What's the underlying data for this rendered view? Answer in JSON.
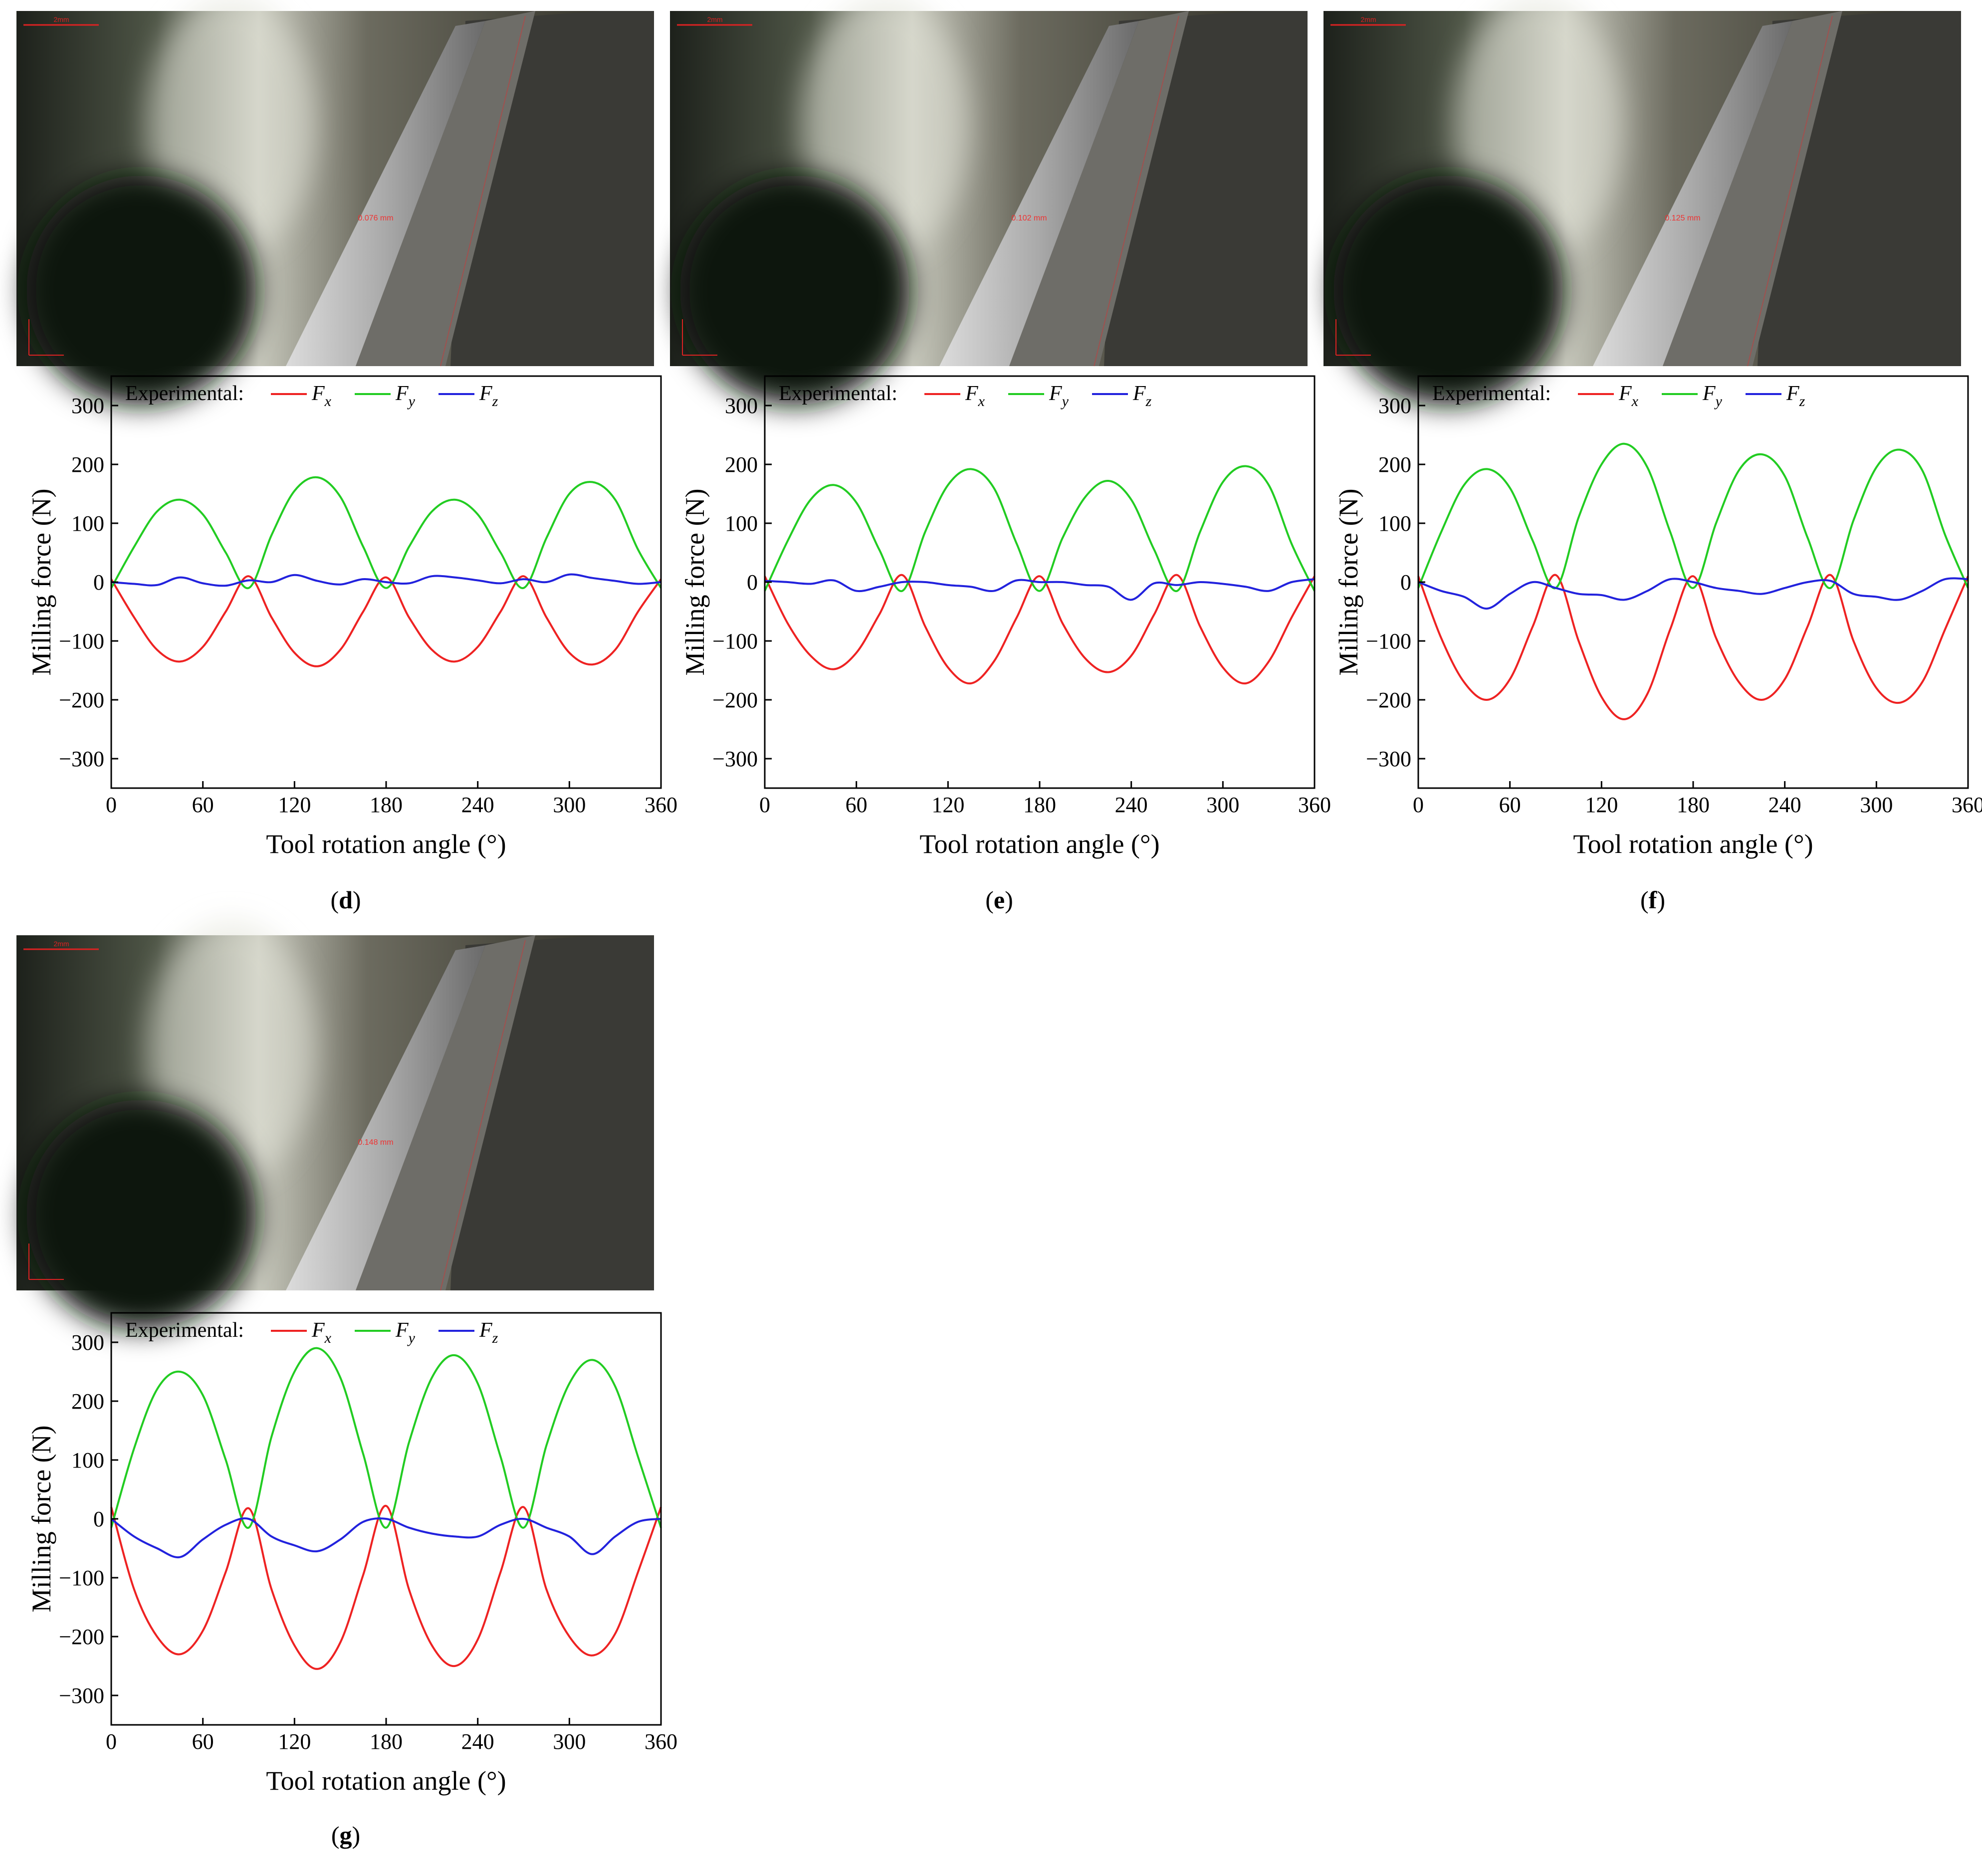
{
  "panels": [
    {
      "label": "d",
      "photo": {
        "scale_bar_text": "2mm",
        "measurement_text": "0.076 mm"
      },
      "chart_data": {
        "type": "line",
        "legend_prefix": "Experimental:",
        "legend_placement": "top-left",
        "xlabel": "Tool rotation angle (°)",
        "ylabel": "Milling force (N)",
        "xlim": [
          0,
          360
        ],
        "ylim": [
          -350,
          350
        ],
        "xticks": [
          0,
          60,
          120,
          180,
          240,
          300,
          360
        ],
        "yticks": [
          300,
          200,
          100,
          0,
          -100,
          -200,
          -300
        ],
        "x": [
          0,
          15,
          30,
          45,
          60,
          75,
          90,
          105,
          120,
          135,
          150,
          165,
          180,
          195,
          210,
          225,
          240,
          255,
          270,
          285,
          300,
          315,
          330,
          345,
          360
        ],
        "series": [
          {
            "name": "Fx",
            "color": "#ee2222",
            "values": [
              5,
              -60,
              -115,
              -135,
              -110,
              -50,
              10,
              -60,
              -120,
              -143,
              -115,
              -50,
              8,
              -60,
              -115,
              -135,
              -110,
              -50,
              10,
              -60,
              -120,
              -140,
              -115,
              -50,
              5
            ]
          },
          {
            "name": "Fy",
            "color": "#22cc22",
            "values": [
              -10,
              60,
              120,
              140,
              115,
              50,
              -10,
              80,
              155,
              178,
              145,
              60,
              -10,
              60,
              120,
              140,
              115,
              50,
              -10,
              75,
              150,
              170,
              140,
              55,
              -10
            ]
          },
          {
            "name": "Fz",
            "color": "#2222dd",
            "values": [
              0,
              -3,
              -5,
              8,
              -2,
              -6,
              3,
              0,
              12,
              2,
              -4,
              5,
              0,
              -2,
              10,
              8,
              3,
              -2,
              5,
              0,
              13,
              7,
              2,
              -3,
              0
            ]
          }
        ]
      }
    },
    {
      "label": "e",
      "photo": {
        "scale_bar_text": "2mm",
        "measurement_text": "0.102 mm"
      },
      "chart_data": {
        "type": "line",
        "legend_prefix": "Experimental:",
        "legend_placement": "top-left",
        "xlabel": "Tool rotation angle (°)",
        "ylabel": "Milling force (N)",
        "xlim": [
          0,
          360
        ],
        "ylim": [
          -350,
          350
        ],
        "xticks": [
          0,
          60,
          120,
          180,
          240,
          300,
          360
        ],
        "yticks": [
          300,
          200,
          100,
          0,
          -100,
          -200,
          -300
        ],
        "x": [
          0,
          15,
          30,
          45,
          60,
          75,
          90,
          105,
          120,
          135,
          150,
          165,
          180,
          195,
          210,
          225,
          240,
          255,
          270,
          285,
          300,
          315,
          330,
          345,
          360
        ],
        "series": [
          {
            "name": "Fx",
            "color": "#ee2222",
            "values": [
              10,
              -70,
              -125,
              -148,
              -120,
              -55,
              12,
              -75,
              -145,
              -172,
              -135,
              -60,
              10,
              -70,
              -130,
              -153,
              -125,
              -55,
              12,
              -75,
              -145,
              -172,
              -135,
              -60,
              10
            ]
          },
          {
            "name": "Fy",
            "color": "#22cc22",
            "values": [
              -15,
              70,
              140,
              165,
              135,
              55,
              -15,
              85,
              165,
              192,
              160,
              65,
              -15,
              75,
              145,
              172,
              140,
              55,
              -15,
              85,
              170,
              197,
              165,
              65,
              -15
            ]
          },
          {
            "name": "Fz",
            "color": "#2222dd",
            "values": [
              2,
              0,
              -3,
              3,
              -15,
              -8,
              0,
              0,
              -5,
              -8,
              -15,
              3,
              0,
              0,
              -5,
              -8,
              -30,
              -2,
              -5,
              0,
              -3,
              -8,
              -15,
              0,
              5
            ]
          }
        ]
      }
    },
    {
      "label": "f",
      "photo": {
        "scale_bar_text": "2mm",
        "measurement_text": "0.125 mm"
      },
      "chart_data": {
        "type": "line",
        "legend_prefix": "Experimental:",
        "legend_placement": "top-left",
        "xlabel": "Tool rotation angle (°)",
        "ylabel": "Milling force (N)",
        "xlim": [
          0,
          360
        ],
        "ylim": [
          -350,
          350
        ],
        "xticks": [
          0,
          60,
          120,
          180,
          240,
          300,
          360
        ],
        "yticks": [
          300,
          200,
          100,
          0,
          -100,
          -200,
          -300
        ],
        "x": [
          0,
          15,
          30,
          45,
          60,
          75,
          90,
          105,
          120,
          135,
          150,
          165,
          180,
          195,
          210,
          225,
          240,
          255,
          270,
          285,
          300,
          315,
          330,
          345,
          360
        ],
        "series": [
          {
            "name": "Fx",
            "color": "#ee2222",
            "values": [
              10,
              -95,
              -170,
              -200,
              -165,
              -75,
              12,
              -100,
              -195,
              -233,
              -190,
              -80,
              10,
              -95,
              -170,
              -200,
              -165,
              -75,
              12,
              -100,
              -180,
              -205,
              -170,
              -80,
              10
            ]
          },
          {
            "name": "Fy",
            "color": "#22cc22",
            "values": [
              -10,
              85,
              165,
              192,
              160,
              70,
              -10,
              110,
              200,
              235,
              195,
              85,
              -10,
              100,
              190,
              217,
              180,
              75,
              -10,
              105,
              195,
              225,
              190,
              80,
              -10
            ]
          },
          {
            "name": "Fz",
            "color": "#2222dd",
            "values": [
              0,
              -15,
              -25,
              -45,
              -20,
              0,
              -10,
              -20,
              -22,
              -30,
              -15,
              5,
              0,
              -10,
              -15,
              -20,
              -10,
              0,
              2,
              -20,
              -25,
              -30,
              -15,
              5,
              5
            ]
          }
        ]
      }
    },
    {
      "label": "g",
      "photo": {
        "scale_bar_text": "2mm",
        "measurement_text": "0.148 mm"
      },
      "chart_data": {
        "type": "line",
        "legend_prefix": "Experimental:",
        "legend_placement": "top-left",
        "xlabel": "Tool rotation angle (°)",
        "ylabel": "Milling force (N)",
        "xlim": [
          0,
          360
        ],
        "ylim": [
          -350,
          350
        ],
        "xticks": [
          0,
          60,
          120,
          180,
          240,
          300,
          360
        ],
        "yticks": [
          300,
          200,
          100,
          0,
          -100,
          -200,
          -300
        ],
        "x": [
          0,
          15,
          30,
          45,
          60,
          75,
          90,
          105,
          120,
          135,
          150,
          165,
          180,
          195,
          210,
          225,
          240,
          255,
          270,
          285,
          300,
          315,
          330,
          345,
          360
        ],
        "series": [
          {
            "name": "Fx",
            "color": "#ee2222",
            "values": [
              20,
              -120,
              -200,
              -230,
              -190,
              -90,
              18,
              -120,
              -215,
              -255,
              -210,
              -95,
              22,
              -120,
              -215,
              -250,
              -205,
              -90,
              20,
              -120,
              -200,
              -232,
              -195,
              -90,
              20
            ]
          },
          {
            "name": "Fy",
            "color": "#22cc22",
            "values": [
              -15,
              120,
              220,
              250,
              210,
              100,
              -15,
              140,
              250,
              290,
              240,
              110,
              -15,
              130,
              240,
              278,
              230,
              105,
              -15,
              125,
              230,
              270,
              225,
              105,
              -15
            ]
          },
          {
            "name": "Fz",
            "color": "#2222dd",
            "values": [
              0,
              -30,
              -50,
              -65,
              -35,
              -10,
              0,
              -30,
              -45,
              -55,
              -35,
              -5,
              0,
              -15,
              -25,
              -30,
              -30,
              -10,
              0,
              -15,
              -30,
              -60,
              -30,
              -5,
              0
            ]
          }
        ]
      }
    }
  ]
}
